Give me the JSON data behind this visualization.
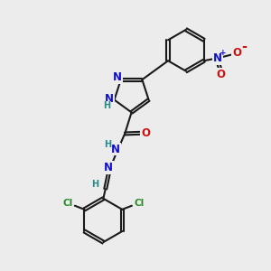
{
  "bg_color": "#ececec",
  "bond_color": "#1a1a1a",
  "bond_width": 1.5,
  "atom_colors": {
    "N": "#1010cc",
    "O": "#cc1010",
    "Cl": "#2a8a2a",
    "H": "#2a8a8a",
    "C": "#1a1a1a"
  },
  "font_size_atoms": 8.5,
  "font_size_small": 7.0,
  "font_size_plus": 6.5
}
